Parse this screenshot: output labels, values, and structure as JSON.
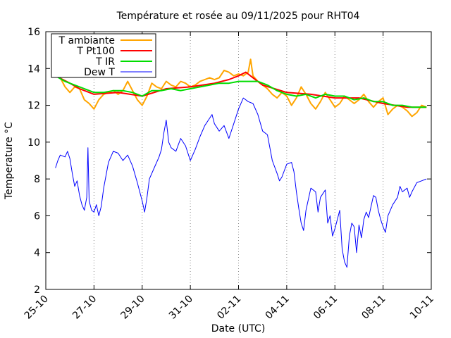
{
  "chart_data": {
    "type": "line",
    "title": "Température et rosée au 09/11/2025 pour RHT04",
    "xlabel": "Date (UTC)",
    "ylabel": "Temperature °C",
    "ylim": [
      2,
      16
    ],
    "xlim": [
      0,
      16
    ],
    "yticks": [
      2,
      4,
      6,
      8,
      10,
      12,
      14,
      16
    ],
    "xticks": [
      {
        "v": 0,
        "label": "25-10"
      },
      {
        "v": 2,
        "label": "27-10"
      },
      {
        "v": 4,
        "label": "29-10"
      },
      {
        "v": 6,
        "label": "31-10"
      },
      {
        "v": 8,
        "label": "02-11"
      },
      {
        "v": 10,
        "label": "04-11"
      },
      {
        "v": 12,
        "label": "06-11"
      },
      {
        "v": 14,
        "label": "08-11"
      },
      {
        "v": 16,
        "label": "10-11"
      }
    ],
    "x_unit": "days since 25-10 00:00 UTC",
    "legend_position": "top-left",
    "series": [
      {
        "name": "T ambiante",
        "color": "#ffa500",
        "points": [
          [
            0.4,
            13.6
          ],
          [
            0.6,
            13.5
          ],
          [
            0.8,
            13.0
          ],
          [
            1.0,
            12.7
          ],
          [
            1.2,
            13.0
          ],
          [
            1.4,
            12.9
          ],
          [
            1.6,
            12.3
          ],
          [
            1.8,
            12.1
          ],
          [
            2.0,
            11.8
          ],
          [
            2.2,
            12.3
          ],
          [
            2.4,
            12.6
          ],
          [
            2.6,
            12.7
          ],
          [
            2.8,
            12.8
          ],
          [
            3.0,
            12.6
          ],
          [
            3.2,
            12.8
          ],
          [
            3.4,
            13.3
          ],
          [
            3.6,
            12.8
          ],
          [
            3.8,
            12.3
          ],
          [
            4.0,
            12.0
          ],
          [
            4.2,
            12.5
          ],
          [
            4.4,
            13.2
          ],
          [
            4.6,
            13.0
          ],
          [
            4.8,
            12.9
          ],
          [
            5.0,
            13.3
          ],
          [
            5.2,
            13.1
          ],
          [
            5.4,
            13.0
          ],
          [
            5.6,
            13.3
          ],
          [
            5.8,
            13.2
          ],
          [
            6.0,
            13.0
          ],
          [
            6.2,
            13.1
          ],
          [
            6.4,
            13.3
          ],
          [
            6.6,
            13.4
          ],
          [
            6.8,
            13.5
          ],
          [
            7.0,
            13.4
          ],
          [
            7.2,
            13.5
          ],
          [
            7.4,
            13.9
          ],
          [
            7.6,
            13.8
          ],
          [
            7.8,
            13.6
          ],
          [
            8.0,
            13.7
          ],
          [
            8.2,
            13.6
          ],
          [
            8.4,
            13.8
          ],
          [
            8.5,
            14.5
          ],
          [
            8.6,
            13.6
          ],
          [
            8.8,
            13.3
          ],
          [
            9.0,
            13.1
          ],
          [
            9.2,
            12.9
          ],
          [
            9.4,
            12.6
          ],
          [
            9.6,
            12.4
          ],
          [
            9.8,
            12.7
          ],
          [
            10.0,
            12.5
          ],
          [
            10.2,
            12.0
          ],
          [
            10.4,
            12.4
          ],
          [
            10.6,
            13.0
          ],
          [
            10.8,
            12.6
          ],
          [
            11.0,
            12.1
          ],
          [
            11.2,
            11.8
          ],
          [
            11.4,
            12.2
          ],
          [
            11.6,
            12.7
          ],
          [
            11.8,
            12.3
          ],
          [
            12.0,
            11.9
          ],
          [
            12.2,
            12.1
          ],
          [
            12.4,
            12.5
          ],
          [
            12.6,
            12.3
          ],
          [
            12.8,
            12.1
          ],
          [
            13.0,
            12.3
          ],
          [
            13.2,
            12.6
          ],
          [
            13.4,
            12.2
          ],
          [
            13.6,
            11.9
          ],
          [
            13.8,
            12.2
          ],
          [
            14.0,
            12.4
          ],
          [
            14.2,
            11.5
          ],
          [
            14.4,
            11.8
          ],
          [
            14.6,
            12.0
          ],
          [
            14.8,
            11.9
          ],
          [
            15.0,
            11.7
          ],
          [
            15.2,
            11.4
          ],
          [
            15.4,
            11.6
          ],
          [
            15.6,
            12.0
          ],
          [
            15.8,
            11.9
          ]
        ]
      },
      {
        "name": "T Pt100",
        "color": "#ff0000",
        "points": [
          [
            0.4,
            13.6
          ],
          [
            1.0,
            13.2
          ],
          [
            1.4,
            12.9
          ],
          [
            2.0,
            12.6
          ],
          [
            3.0,
            12.7
          ],
          [
            4.0,
            12.5
          ],
          [
            5.0,
            12.9
          ],
          [
            6.0,
            13.0
          ],
          [
            7.0,
            13.2
          ],
          [
            7.6,
            13.4
          ],
          [
            8.0,
            13.6
          ],
          [
            8.3,
            13.8
          ],
          [
            8.6,
            13.5
          ],
          [
            9.0,
            13.1
          ],
          [
            10.0,
            12.7
          ],
          [
            11.0,
            12.6
          ],
          [
            12.0,
            12.4
          ],
          [
            13.0,
            12.4
          ],
          [
            14.0,
            12.1
          ],
          [
            15.0,
            11.9
          ],
          [
            15.8,
            11.9
          ]
        ]
      },
      {
        "name": "T IR",
        "color": "#00dd00",
        "points": [
          [
            0.4,
            13.6
          ],
          [
            0.8,
            13.3
          ],
          [
            1.2,
            13.1
          ],
          [
            1.6,
            12.9
          ],
          [
            2.0,
            12.7
          ],
          [
            2.4,
            12.7
          ],
          [
            2.8,
            12.8
          ],
          [
            3.2,
            12.8
          ],
          [
            3.6,
            12.7
          ],
          [
            4.0,
            12.5
          ],
          [
            4.4,
            12.8
          ],
          [
            4.8,
            12.8
          ],
          [
            5.2,
            12.9
          ],
          [
            5.6,
            12.8
          ],
          [
            6.0,
            12.9
          ],
          [
            6.4,
            13.0
          ],
          [
            6.8,
            13.1
          ],
          [
            7.2,
            13.2
          ],
          [
            7.6,
            13.2
          ],
          [
            8.0,
            13.3
          ],
          [
            8.4,
            13.3
          ],
          [
            8.8,
            13.3
          ],
          [
            9.2,
            13.1
          ],
          [
            9.6,
            12.8
          ],
          [
            10.0,
            12.6
          ],
          [
            10.4,
            12.5
          ],
          [
            10.8,
            12.6
          ],
          [
            11.2,
            12.4
          ],
          [
            11.6,
            12.6
          ],
          [
            12.0,
            12.5
          ],
          [
            12.4,
            12.5
          ],
          [
            12.8,
            12.3
          ],
          [
            13.2,
            12.4
          ],
          [
            13.6,
            12.2
          ],
          [
            14.0,
            12.2
          ],
          [
            14.4,
            12.0
          ],
          [
            14.8,
            12.0
          ],
          [
            15.2,
            11.9
          ],
          [
            15.6,
            11.9
          ],
          [
            15.8,
            11.9
          ]
        ]
      },
      {
        "name": "Dew T",
        "color": "#0000ff",
        "points": [
          [
            0.4,
            8.6
          ],
          [
            0.5,
            9.0
          ],
          [
            0.6,
            9.3
          ],
          [
            0.8,
            9.2
          ],
          [
            0.9,
            9.5
          ],
          [
            1.0,
            9.1
          ],
          [
            1.1,
            8.3
          ],
          [
            1.2,
            7.6
          ],
          [
            1.3,
            7.9
          ],
          [
            1.4,
            7.1
          ],
          [
            1.5,
            6.6
          ],
          [
            1.6,
            6.3
          ],
          [
            1.7,
            7.0
          ],
          [
            1.75,
            9.7
          ],
          [
            1.8,
            6.8
          ],
          [
            1.9,
            6.3
          ],
          [
            2.0,
            6.2
          ],
          [
            2.1,
            6.6
          ],
          [
            2.2,
            6.0
          ],
          [
            2.3,
            6.5
          ],
          [
            2.4,
            7.5
          ],
          [
            2.5,
            8.2
          ],
          [
            2.6,
            8.9
          ],
          [
            2.7,
            9.2
          ],
          [
            2.8,
            9.5
          ],
          [
            3.0,
            9.4
          ],
          [
            3.2,
            9.0
          ],
          [
            3.4,
            9.3
          ],
          [
            3.6,
            8.7
          ],
          [
            3.8,
            7.8
          ],
          [
            3.9,
            7.3
          ],
          [
            4.0,
            6.8
          ],
          [
            4.1,
            6.2
          ],
          [
            4.2,
            7.0
          ],
          [
            4.3,
            8.0
          ],
          [
            4.5,
            8.6
          ],
          [
            4.7,
            9.2
          ],
          [
            4.8,
            9.6
          ],
          [
            4.9,
            10.5
          ],
          [
            5.0,
            11.2
          ],
          [
            5.1,
            10.0
          ],
          [
            5.2,
            9.7
          ],
          [
            5.4,
            9.5
          ],
          [
            5.6,
            10.2
          ],
          [
            5.8,
            9.8
          ],
          [
            6.0,
            9.0
          ],
          [
            6.2,
            9.6
          ],
          [
            6.4,
            10.3
          ],
          [
            6.6,
            10.9
          ],
          [
            6.8,
            11.3
          ],
          [
            6.9,
            11.5
          ],
          [
            7.0,
            11.0
          ],
          [
            7.2,
            10.6
          ],
          [
            7.4,
            10.9
          ],
          [
            7.6,
            10.2
          ],
          [
            7.8,
            11.0
          ],
          [
            8.0,
            11.8
          ],
          [
            8.2,
            12.4
          ],
          [
            8.4,
            12.2
          ],
          [
            8.6,
            12.1
          ],
          [
            8.8,
            11.5
          ],
          [
            9.0,
            10.6
          ],
          [
            9.2,
            10.4
          ],
          [
            9.4,
            9.0
          ],
          [
            9.6,
            8.3
          ],
          [
            9.7,
            7.9
          ],
          [
            9.8,
            8.1
          ],
          [
            10.0,
            8.8
          ],
          [
            10.2,
            8.9
          ],
          [
            10.3,
            8.4
          ],
          [
            10.4,
            7.3
          ],
          [
            10.5,
            6.4
          ],
          [
            10.6,
            5.6
          ],
          [
            10.7,
            5.2
          ],
          [
            10.8,
            6.3
          ],
          [
            11.0,
            7.5
          ],
          [
            11.2,
            7.3
          ],
          [
            11.3,
            6.2
          ],
          [
            11.4,
            7.0
          ],
          [
            11.6,
            7.4
          ],
          [
            11.7,
            5.6
          ],
          [
            11.8,
            6.0
          ],
          [
            11.9,
            4.9
          ],
          [
            12.0,
            5.3
          ],
          [
            12.1,
            5.8
          ],
          [
            12.2,
            6.3
          ],
          [
            12.3,
            4.2
          ],
          [
            12.4,
            3.5
          ],
          [
            12.5,
            3.2
          ],
          [
            12.6,
            4.9
          ],
          [
            12.7,
            5.6
          ],
          [
            12.8,
            5.4
          ],
          [
            12.9,
            4.0
          ],
          [
            13.0,
            5.5
          ],
          [
            13.1,
            4.8
          ],
          [
            13.2,
            5.8
          ],
          [
            13.3,
            6.2
          ],
          [
            13.4,
            5.9
          ],
          [
            13.5,
            6.5
          ],
          [
            13.6,
            7.1
          ],
          [
            13.7,
            7.0
          ],
          [
            13.8,
            6.3
          ],
          [
            13.9,
            5.8
          ],
          [
            14.0,
            5.4
          ],
          [
            14.1,
            5.1
          ],
          [
            14.2,
            6.0
          ],
          [
            14.4,
            6.6
          ],
          [
            14.6,
            7.0
          ],
          [
            14.7,
            7.6
          ],
          [
            14.8,
            7.3
          ],
          [
            15.0,
            7.5
          ],
          [
            15.1,
            7.0
          ],
          [
            15.2,
            7.3
          ],
          [
            15.4,
            7.8
          ],
          [
            15.6,
            7.9
          ],
          [
            15.8,
            8.0
          ]
        ]
      }
    ]
  }
}
